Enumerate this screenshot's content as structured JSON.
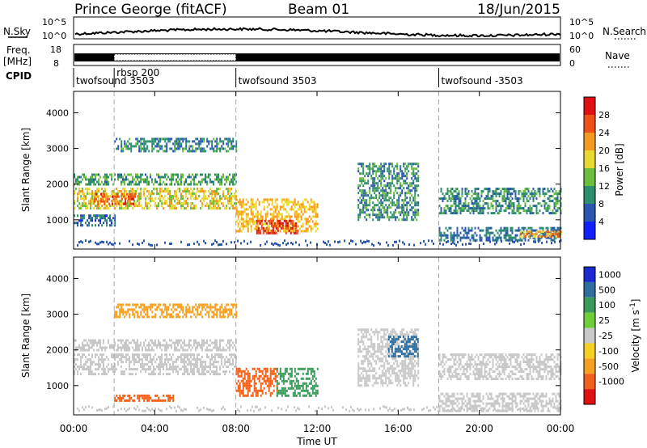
{
  "header": {
    "station": "Prince George (fitACF)",
    "beam": "Beam 01",
    "date": "18/Jun/2015"
  },
  "top_panels": {
    "nsky_label": "N.Sky",
    "nsky_ticks": [
      "10^5",
      "10^0"
    ],
    "nsearch_label": "N.Search",
    "nsearch_ticks": [
      "10^5",
      "10^0"
    ],
    "freq_label_1": "Freq.",
    "freq_label_2": "[MHz]",
    "freq_ticks": [
      "18",
      "8"
    ],
    "nave_label": "Nave",
    "nave_ticks": [
      "60",
      "0"
    ],
    "cpid_label": "CPID",
    "cpid_segments": [
      {
        "name": "twofsound 3503",
        "start": 0.0
      },
      {
        "name": "rbsp 200",
        "start": 2.0
      },
      {
        "name": "twofsound 3503",
        "start": 8.0
      },
      {
        "name": "twofsound -3503",
        "start": 18.0
      }
    ]
  },
  "chart_data": [
    {
      "type": "heatmap",
      "parameter": "Power",
      "ylabel": "Slant Range [km]",
      "xlabel": "",
      "xlim": [
        0,
        24
      ],
      "ylim": [
        180,
        4600
      ],
      "yticks": [
        1000,
        2000,
        3000,
        4000
      ],
      "colorbar": {
        "label": "Power [dB]",
        "ticks": [
          4,
          8,
          12,
          16,
          20,
          24,
          28
        ],
        "range": [
          0,
          32
        ],
        "colors": [
          "#1020ff",
          "#2a55b0",
          "#2e8f6e",
          "#6cbf3c",
          "#e8d830",
          "#f59a20",
          "#f05018",
          "#e01010"
        ]
      },
      "grid": false,
      "echo_regions": [
        {
          "t0": 0.0,
          "t1": 8.0,
          "r0": 1350,
          "r1": 1900,
          "level": 18
        },
        {
          "t0": 1.0,
          "t1": 3.0,
          "r0": 1450,
          "r1": 1750,
          "level": 26
        },
        {
          "t0": 0.0,
          "t1": 8.0,
          "r0": 2000,
          "r1": 2300,
          "level": 11
        },
        {
          "t0": 2.0,
          "t1": 8.0,
          "r0": 2900,
          "r1": 3300,
          "level": 9
        },
        {
          "t0": 0.0,
          "t1": 2.0,
          "r0": 850,
          "r1": 1150,
          "level": 7
        },
        {
          "t0": 8.0,
          "t1": 12.0,
          "r0": 700,
          "r1": 1600,
          "level": 20
        },
        {
          "t0": 9.0,
          "t1": 11.0,
          "r0": 650,
          "r1": 1000,
          "level": 28
        },
        {
          "t0": 14.0,
          "t1": 17.0,
          "r0": 1000,
          "r1": 2600,
          "level": 10
        },
        {
          "t0": 18.0,
          "t1": 24.0,
          "r0": 1200,
          "r1": 1900,
          "level": 10
        },
        {
          "t0": 18.0,
          "t1": 24.0,
          "r0": 400,
          "r1": 800,
          "level": 8
        },
        {
          "t0": 22.0,
          "t1": 24.0,
          "r0": 500,
          "r1": 700,
          "level": 22
        }
      ]
    },
    {
      "type": "heatmap",
      "parameter": "Velocity",
      "ylabel": "Slant Range [km]",
      "xlabel": "Time UT",
      "xlim": [
        0,
        24
      ],
      "ylim": [
        180,
        4600
      ],
      "yticks": [
        1000,
        2000,
        3000,
        4000
      ],
      "xticks": [
        "00:00",
        "04:00",
        "08:00",
        "12:00",
        "16:00",
        "20:00",
        "00:00"
      ],
      "colorbar": {
        "label": "Velocity [m s^-1]",
        "ticks": [
          "1000",
          "500",
          "100",
          "25",
          "-25",
          "-100",
          "-500",
          "-1000"
        ],
        "colors": [
          "#1a2ad0",
          "#2f6e9c",
          "#3a9a5a",
          "#6fcf3a",
          "#c8c8c8",
          "#f5d020",
          "#f5a020",
          "#f06018",
          "#e01010"
        ]
      },
      "grid": false,
      "echo_regions": [
        {
          "t0": 0.0,
          "t1": 8.0,
          "r0": 1350,
          "r1": 1900,
          "level": 0
        },
        {
          "t0": 0.0,
          "t1": 8.0,
          "r0": 2000,
          "r1": 2300,
          "level": 0
        },
        {
          "t0": 2.0,
          "t1": 8.0,
          "r0": 2900,
          "r1": 3300,
          "level": -80
        },
        {
          "t0": 2.0,
          "t1": 5.0,
          "r0": 550,
          "r1": 750,
          "level": -400
        },
        {
          "t0": 8.0,
          "t1": 10.0,
          "r0": 700,
          "r1": 1500,
          "level": -600
        },
        {
          "t0": 10.0,
          "t1": 12.0,
          "r0": 700,
          "r1": 1500,
          "level": 150
        },
        {
          "t0": 14.0,
          "t1": 17.0,
          "r0": 1000,
          "r1": 2600,
          "level": 0
        },
        {
          "t0": 15.5,
          "t1": 17.0,
          "r0": 1800,
          "r1": 2400,
          "level": 600
        },
        {
          "t0": 18.0,
          "t1": 24.0,
          "r0": 1200,
          "r1": 1900,
          "level": 0
        },
        {
          "t0": 18.0,
          "t1": 24.0,
          "r0": 300,
          "r1": 800,
          "level": 0
        }
      ]
    }
  ]
}
